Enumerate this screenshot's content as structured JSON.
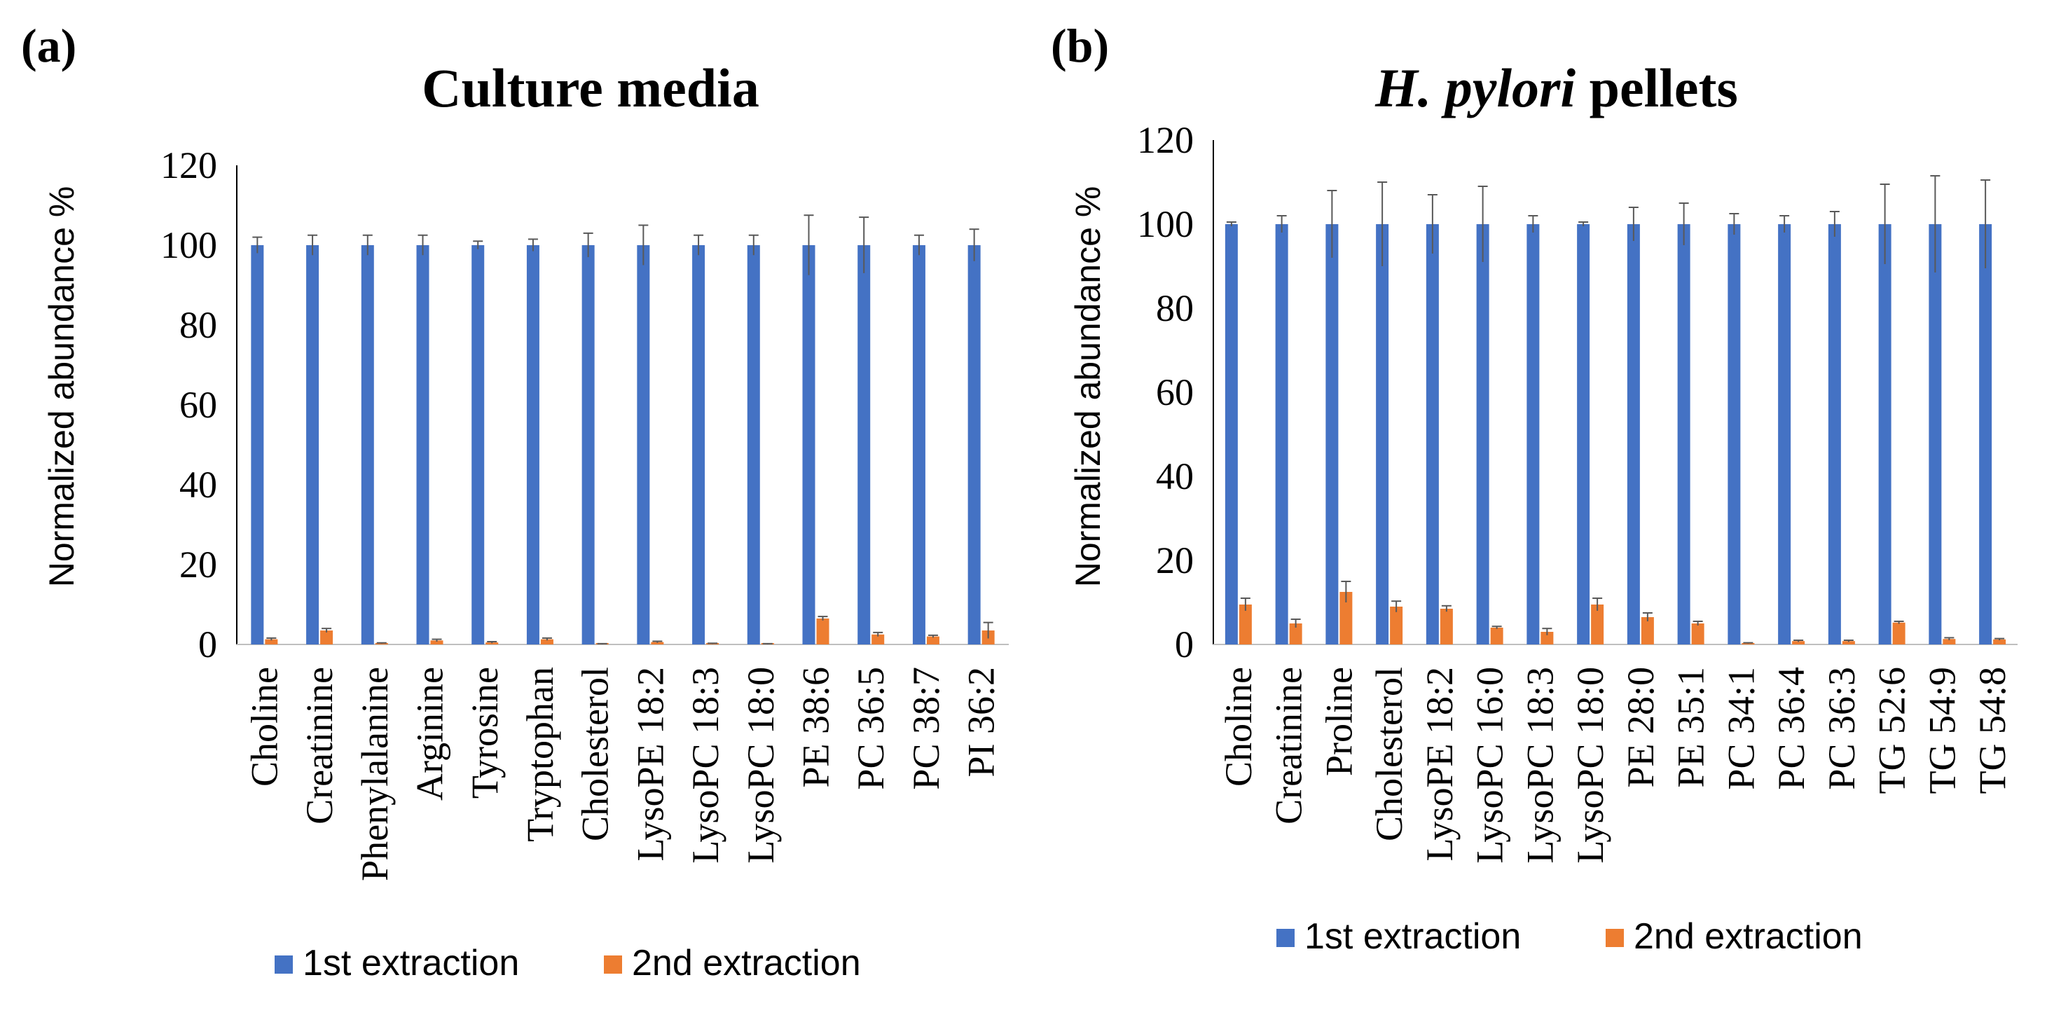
{
  "chart_data": [
    {
      "type": "bar",
      "panel_label": "(a)",
      "title": "Culture media",
      "title_italic": "",
      "xlabel": "",
      "ylabel": "Normalized abundance %",
      "ylim": [
        0,
        120
      ],
      "yticks": [
        0,
        20,
        40,
        60,
        80,
        100,
        120
      ],
      "legend_position": "bottom",
      "categories": [
        "Choline",
        "Creatinine",
        "Phenylalanine",
        "Arginine",
        "Tyrosine",
        "Tryptophan",
        "Cholesterol",
        "LysoPE 18:2",
        "LysoPC 18:3",
        "LysoPC 18:0",
        "PE 38:6",
        "PC 36:5",
        "PC 38:7",
        "PI 36:2"
      ],
      "series": [
        {
          "name": "1st extraction",
          "color": "#4472c4",
          "values": [
            100,
            100,
            100,
            100,
            100,
            100,
            100,
            100,
            100,
            100,
            100,
            100,
            100,
            100
          ],
          "errors": [
            2,
            2.5,
            2.5,
            2.5,
            1,
            1.5,
            3,
            5,
            2.5,
            2.5,
            7.5,
            7,
            2.5,
            4
          ]
        },
        {
          "name": "2nd extraction",
          "color": "#ed7d31",
          "values": [
            1.3,
            3.5,
            0.3,
            1,
            0.5,
            1.3,
            0.1,
            0.6,
            0.2,
            0.1,
            6.5,
            2.5,
            2,
            3.5
          ],
          "errors": [
            0.3,
            0.5,
            0.1,
            0.3,
            0.2,
            0.3,
            0.1,
            0.2,
            0.1,
            0.1,
            0.5,
            0.5,
            0.3,
            2
          ]
        }
      ]
    },
    {
      "type": "bar",
      "panel_label": "(b)",
      "title": "pellets",
      "title_italic": "H. pylori",
      "xlabel": "",
      "ylabel": "Normalized abundance %",
      "ylim": [
        0,
        120
      ],
      "yticks": [
        0,
        20,
        40,
        60,
        80,
        100,
        120
      ],
      "legend_position": "bottom",
      "categories": [
        "Choline",
        "Creatinine",
        "Proline",
        "Cholesterol",
        "LysoPE 18:2",
        "LysoPC 16:0",
        "LysoPC 18:3",
        "LysoPC 18:0",
        "PE 28:0",
        "PE 35:1",
        "PC 34:1",
        "PC 36:4",
        "PC 36:3",
        "TG 52:6",
        "TG 54:9",
        "TG 54:8"
      ],
      "series": [
        {
          "name": "1st extraction",
          "color": "#4472c4",
          "values": [
            100,
            100,
            100,
            100,
            100,
            100,
            100,
            100,
            100,
            100,
            100,
            100,
            100,
            100,
            100,
            100
          ],
          "errors": [
            0.5,
            2,
            8,
            10,
            7,
            9,
            2,
            0.5,
            4,
            5,
            2.5,
            2,
            3,
            9.5,
            11.5,
            10.5
          ]
        },
        {
          "name": "2nd extraction",
          "color": "#ed7d31",
          "values": [
            9.5,
            5,
            12.5,
            9,
            8.5,
            4,
            3,
            9.5,
            6.5,
            5,
            0.3,
            0.8,
            0.8,
            5.2,
            1.3,
            1.2
          ],
          "errors": [
            1.5,
            1,
            2.5,
            1.3,
            0.7,
            0.3,
            0.8,
            1.5,
            1,
            0.5,
            0.1,
            0.2,
            0.2,
            0.3,
            0.3,
            0.2
          ]
        }
      ]
    }
  ]
}
